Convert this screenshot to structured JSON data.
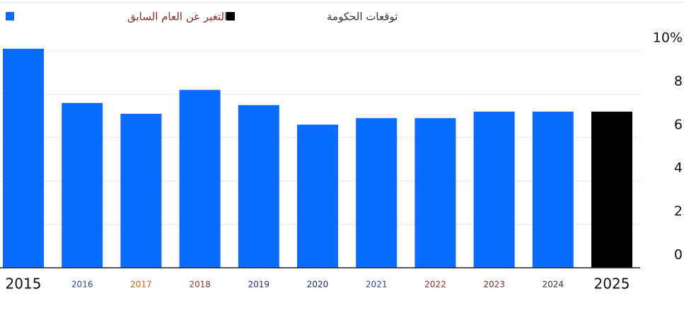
{
  "chart_data": {
    "type": "bar",
    "categories": [
      "2015",
      "2016",
      "2017",
      "2018",
      "2019",
      "2020",
      "2021",
      "2022",
      "2023",
      "2024",
      "2025"
    ],
    "category_label_colors": [
      "#111111",
      "#2b4a8b",
      "#c06a1a",
      "#8b3a2a",
      "#1a2a6b",
      "#1a2a6b",
      "#2b4a8b",
      "#8b2b2b",
      "#6b2b2b",
      "#333333",
      "#111111"
    ],
    "series": [
      {
        "name": "التغير عن العام السابق",
        "color": "#0a6cff",
        "label_color": "#8b2b2b",
        "values": [
          10.1,
          7.6,
          7.1,
          8.2,
          7.5,
          6.6,
          6.9,
          6.9,
          7.2,
          7.2,
          null
        ]
      },
      {
        "name": "توقعات الحكومة",
        "color": "#000000",
        "label_color": "#333333",
        "values": [
          null,
          null,
          null,
          null,
          null,
          null,
          null,
          null,
          null,
          null,
          7.2
        ]
      }
    ],
    "ylim": [
      0,
      10
    ],
    "yticks": [
      0,
      2,
      4,
      6,
      8,
      {
        "value": 10,
        "label": "10%"
      }
    ],
    "grid": true
  }
}
